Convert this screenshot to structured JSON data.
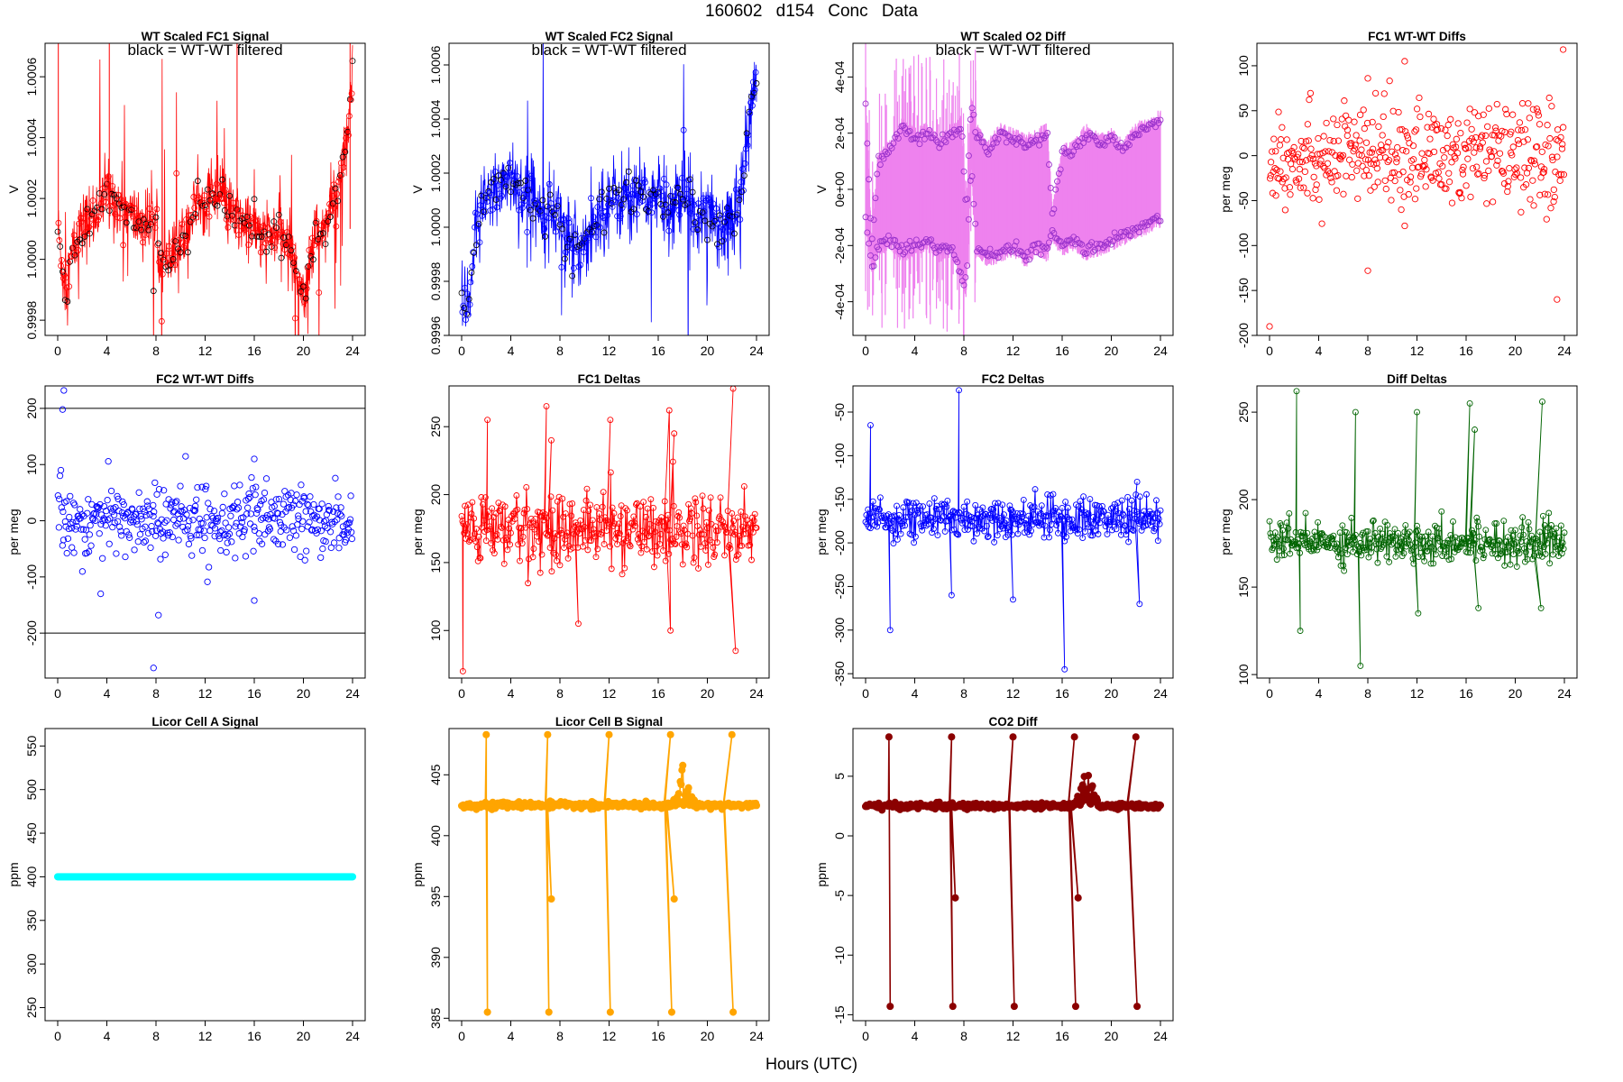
{
  "header": {
    "title": "160602   d154   Conc Data"
  },
  "x_axis_label": "Hours (UTC)",
  "chart_data": [
    {
      "id": "fc1-signal",
      "type": "line",
      "title": "WT Scaled FC1 Signal",
      "annotation": "black = WT-WT filtered",
      "ylabel": "V",
      "xlim": [
        0,
        24
      ],
      "ylim": [
        0.99975,
        1.00071
      ],
      "x_ticks": [
        0,
        4,
        8,
        12,
        16,
        20,
        24
      ],
      "y_ticks": [
        0.9998,
        1.0,
        1.0002,
        1.0004,
        1.0006
      ],
      "y_tick_labels": [
        "0.9998",
        "1.0000",
        "1.0002",
        "1.0004",
        "1.0006"
      ],
      "color": "#ff0000",
      "marker": "open-circle",
      "noise": 6e-05,
      "trend_x": [
        0,
        0.6,
        1.2,
        2,
        3,
        4,
        5,
        6,
        7,
        8,
        8.7,
        9.5,
        11,
        12,
        13,
        14,
        15,
        16,
        17,
        18,
        19,
        20,
        21,
        22,
        22.6,
        23.2,
        23.6,
        24
      ],
      "trend_y": [
        1.0001,
        0.9999,
        1.00002,
        1.0001,
        1.00015,
        1.00022,
        1.00018,
        1.00014,
        1.00012,
        1.00011,
        0.99998,
        1.0,
        1.00015,
        1.0002,
        1.00022,
        1.00015,
        1.00012,
        1.0001,
        1.00005,
        1.0001,
        1.00002,
        0.9999,
        1.00008,
        1.00012,
        1.00022,
        1.0003,
        1.0004,
        1.0006
      ]
    },
    {
      "id": "fc2-signal",
      "type": "line",
      "title": "WT Scaled FC2 Signal",
      "annotation": "black = WT-WT filtered",
      "ylabel": "V",
      "xlim": [
        0,
        24
      ],
      "ylim": [
        0.9996,
        1.00068
      ],
      "x_ticks": [
        0,
        4,
        8,
        12,
        16,
        20,
        24
      ],
      "y_ticks": [
        0.9996,
        0.9998,
        1.0,
        1.0002,
        1.0004,
        1.0006
      ],
      "y_tick_labels": [
        "0.9996",
        "0.9998",
        "1.0000",
        "1.0002",
        "1.0004",
        "1.0006"
      ],
      "color": "#0000ff",
      "marker": "open-circle",
      "noise": 8e-05,
      "trend_x": [
        0,
        0.5,
        1,
        2,
        3,
        4,
        5,
        6,
        7,
        8,
        9,
        10,
        12,
        14,
        16,
        17,
        18,
        19,
        20,
        21,
        22,
        23,
        23.5,
        24
      ],
      "trend_y": [
        0.99975,
        0.99965,
        0.99995,
        1.0001,
        1.00015,
        1.0002,
        1.00012,
        1.0001,
        1.00008,
        1.00005,
        0.9999,
        0.99995,
        1.0001,
        1.00012,
        1.0001,
        1.00008,
        1.00012,
        1.00005,
        1.0001,
        1.0,
        1.00002,
        1.0002,
        1.0004,
        1.0006
      ]
    },
    {
      "id": "o2-diff",
      "type": "line",
      "title": "WT Scaled O2 Diff",
      "annotation": "black = WT-WT filtered",
      "ylabel": "V",
      "xlim": [
        0,
        24
      ],
      "ylim": [
        -0.00052,
        0.00052
      ],
      "x_ticks": [
        0,
        4,
        8,
        12,
        16,
        20,
        24
      ],
      "y_ticks": [
        -0.0004,
        -0.0002,
        0,
        0.0002,
        0.0004
      ],
      "y_tick_labels": [
        "-4e-04",
        "-2e-04",
        "0e+00",
        "2e-04",
        "4e-04"
      ],
      "color": "#ee82ee",
      "marker_color": "#9932cc",
      "marker": "open-circle",
      "upper_x": [
        0,
        0.5,
        1,
        2,
        3,
        4,
        5,
        6,
        7,
        7.8,
        8.2,
        8.6,
        9,
        10,
        11,
        12,
        13,
        14,
        14.8,
        15.2,
        16,
        17,
        18,
        19,
        20,
        21,
        22,
        23,
        24
      ],
      "upper_y": [
        0.0003,
        -0.0002,
        0.0001,
        0.00014,
        0.00022,
        0.00018,
        0.0002,
        0.00016,
        0.0002,
        0.00022,
        -0.0001,
        0.00032,
        0.0002,
        0.00014,
        0.0002,
        0.00018,
        0.00016,
        0.00018,
        0.0002,
        -0.0001,
        0.00012,
        0.00014,
        0.0002,
        0.00016,
        0.00018,
        0.00014,
        0.0002,
        0.00022,
        0.00025
      ],
      "lower_x": [
        0,
        0.5,
        1,
        2,
        3,
        4,
        5,
        6,
        7,
        7.8,
        8.2,
        8.6,
        9,
        10,
        11,
        12,
        13,
        14,
        14.8,
        15.2,
        16,
        17,
        18,
        19,
        20,
        21,
        22,
        23,
        24
      ],
      "lower_y": [
        -0.0001,
        -0.00028,
        -0.0002,
        -0.00018,
        -0.00022,
        -0.0002,
        -0.00018,
        -0.00022,
        -0.0002,
        -0.0003,
        -0.00035,
        0.0001,
        -0.0002,
        -0.00024,
        -0.00022,
        -0.0002,
        -0.00024,
        -0.0002,
        -0.00022,
        -0.00015,
        -0.0002,
        -0.00018,
        -0.00022,
        -0.0002,
        -0.00018,
        -0.00016,
        -0.00014,
        -0.00012,
        -0.0001
      ]
    },
    {
      "id": "fc1-wtwt",
      "type": "scatter",
      "title": "FC1 WT-WT Diffs",
      "ylabel": "per meg",
      "xlim": [
        0,
        24
      ],
      "ylim": [
        -200,
        125
      ],
      "x_ticks": [
        0,
        4,
        8,
        12,
        16,
        20,
        24
      ],
      "y_ticks": [
        -200,
        -150,
        -100,
        -50,
        0,
        50,
        100
      ],
      "y_tick_labels": [
        "-200",
        "-150",
        "-100",
        "-50",
        "0",
        "50",
        "100"
      ],
      "hlines": [
        -200
      ],
      "color": "#ff0000",
      "marker": "open-circle",
      "center": 0,
      "spread": 28,
      "count": 420,
      "outliers": [
        [
          0,
          -190
        ],
        [
          23.4,
          -160
        ],
        [
          23.9,
          118
        ],
        [
          8,
          -128
        ],
        [
          11,
          105
        ],
        [
          8,
          86
        ]
      ]
    },
    {
      "id": "fc2-wtwt",
      "type": "scatter",
      "title": "FC2 WT-WT Diffs",
      "ylabel": "per meg",
      "xlim": [
        0,
        24
      ],
      "ylim": [
        -280,
        240
      ],
      "x_ticks": [
        0,
        4,
        8,
        12,
        16,
        20,
        24
      ],
      "y_ticks": [
        -200,
        -100,
        0,
        100,
        200
      ],
      "y_tick_labels": [
        "-200",
        "-100",
        "0",
        "100",
        "200"
      ],
      "hlines": [
        200,
        -200
      ],
      "color": "#0000ff",
      "marker": "open-circle",
      "center": 0,
      "spread": 32,
      "count": 420,
      "outliers": [
        [
          0.5,
          232
        ],
        [
          0.4,
          198
        ],
        [
          7.8,
          -262
        ],
        [
          8.2,
          -168
        ],
        [
          3.5,
          -130
        ],
        [
          16,
          -142
        ],
        [
          16,
          110
        ]
      ]
    },
    {
      "id": "fc1-deltas",
      "type": "line",
      "title": "FC1 Deltas",
      "ylabel": "per meg",
      "xlim": [
        0,
        24
      ],
      "ylim": [
        65,
        280
      ],
      "x_ticks": [
        0,
        4,
        8,
        12,
        16,
        20,
        24
      ],
      "y_ticks": [
        100,
        150,
        200,
        250
      ],
      "y_tick_labels": [
        "100",
        "150",
        "200",
        "250"
      ],
      "color": "#ff0000",
      "marker": "open-circle",
      "baseline": 175,
      "noise": 13,
      "spikes": [
        [
          0.1,
          70
        ],
        [
          2.1,
          255
        ],
        [
          6.9,
          265
        ],
        [
          7.3,
          240
        ],
        [
          12.1,
          255
        ],
        [
          16.9,
          262
        ],
        [
          17.3,
          245
        ],
        [
          22.1,
          278
        ],
        [
          22.3,
          85
        ],
        [
          9.5,
          105
        ],
        [
          17,
          100
        ]
      ]
    },
    {
      "id": "fc2-deltas",
      "type": "line",
      "title": "FC2 Deltas",
      "ylabel": "per meg",
      "xlim": [
        0,
        24
      ],
      "ylim": [
        -355,
        -20
      ],
      "x_ticks": [
        0,
        4,
        8,
        12,
        16,
        20,
        24
      ],
      "y_ticks": [
        -350,
        -300,
        -250,
        -200,
        -150,
        -100,
        -50
      ],
      "y_tick_labels": [
        "-350",
        "-300",
        "-250",
        "-200",
        "-150",
        "-100",
        "-50"
      ],
      "color": "#0000ff",
      "marker": "open-circle",
      "baseline": -172,
      "noise": 12,
      "spikes": [
        [
          7.6,
          -25
        ],
        [
          0.4,
          -65
        ],
        [
          2,
          -300
        ],
        [
          16.2,
          -345
        ],
        [
          22.1,
          -130
        ],
        [
          22.3,
          -270
        ],
        [
          12,
          -265
        ],
        [
          7,
          -260
        ]
      ]
    },
    {
      "id": "diff-deltas",
      "type": "line",
      "title": "Diff Deltas",
      "ylabel": "per meg",
      "xlim": [
        0,
        24
      ],
      "ylim": [
        98,
        265
      ],
      "x_ticks": [
        0,
        4,
        8,
        12,
        16,
        20,
        24
      ],
      "y_ticks": [
        100,
        150,
        200,
        250
      ],
      "y_tick_labels": [
        "100",
        "150",
        "200",
        "250"
      ],
      "color": "#006400",
      "marker": "open-circle",
      "baseline": 176,
      "noise": 6,
      "spikes": [
        [
          2.2,
          262
        ],
        [
          7,
          250
        ],
        [
          7.4,
          105
        ],
        [
          12,
          250
        ],
        [
          12.1,
          135
        ],
        [
          16.3,
          255
        ],
        [
          16.7,
          240
        ],
        [
          17,
          138
        ],
        [
          22.2,
          256
        ],
        [
          22.1,
          138
        ],
        [
          2.5,
          125
        ]
      ]
    },
    {
      "id": "licor-a",
      "type": "line",
      "title": "Licor Cell A Signal",
      "ylabel": "ppm",
      "xlim": [
        0,
        24
      ],
      "ylim": [
        235,
        570
      ],
      "x_ticks": [
        0,
        4,
        8,
        12,
        16,
        20,
        24
      ],
      "y_ticks": [
        250,
        300,
        350,
        400,
        450,
        500,
        550
      ],
      "y_tick_labels": [
        "250",
        "300",
        "350",
        "400",
        "450",
        "500",
        "550"
      ],
      "color": "#00ffff",
      "marker": "filled-circle",
      "baseline": 400,
      "noise": 0,
      "spikes": []
    },
    {
      "id": "licor-b",
      "type": "line",
      "title": "Licor Cell B Signal",
      "ylabel": "ppm",
      "xlim": [
        0,
        24
      ],
      "ylim": [
        384.8,
        408.8
      ],
      "x_ticks": [
        0,
        4,
        8,
        12,
        16,
        20,
        24
      ],
      "y_ticks": [
        385,
        390,
        395,
        400,
        405
      ],
      "y_tick_labels": [
        "385",
        "390",
        "395",
        "400",
        "405"
      ],
      "color": "#ffa500",
      "marker": "filled-circle",
      "baseline": 402.5,
      "noise": 0.12,
      "spikes": [
        [
          2,
          408.3
        ],
        [
          2.1,
          385.5
        ],
        [
          7,
          408.3
        ],
        [
          7.1,
          385.5
        ],
        [
          7.3,
          394.8
        ],
        [
          12,
          408.3
        ],
        [
          12.1,
          385.5
        ],
        [
          17,
          408.3
        ],
        [
          17.1,
          385.5
        ],
        [
          17.3,
          394.8
        ],
        [
          22,
          408.3
        ],
        [
          22.1,
          385.5
        ]
      ],
      "bump": {
        "start": 17,
        "end": 19,
        "amp": 3.5
      }
    },
    {
      "id": "co2-diff",
      "type": "line",
      "title": "CO2 Diff",
      "ylabel": "ppm",
      "xlim": [
        0,
        24
      ],
      "ylim": [
        -15.5,
        9
      ],
      "x_ticks": [
        0,
        4,
        8,
        12,
        16,
        20,
        24
      ],
      "y_ticks": [
        -15,
        -10,
        -5,
        0,
        5
      ],
      "y_tick_labels": [
        "-15",
        "-10",
        "-5",
        "0",
        "5"
      ],
      "color": "#8b0000",
      "marker": "filled-circle",
      "baseline": 2.5,
      "noise": 0.12,
      "spikes": [
        [
          1.9,
          8.3
        ],
        [
          2,
          -14.3
        ],
        [
          7,
          8.3
        ],
        [
          7.1,
          -14.3
        ],
        [
          7.3,
          -5.2
        ],
        [
          12,
          8.3
        ],
        [
          12.1,
          -14.3
        ],
        [
          17,
          8.3
        ],
        [
          17.1,
          -14.3
        ],
        [
          17.3,
          -5.2
        ],
        [
          22,
          8.3
        ],
        [
          22.1,
          -14.3
        ]
      ],
      "bump": {
        "start": 17,
        "end": 19,
        "amp": 3.5
      }
    }
  ]
}
